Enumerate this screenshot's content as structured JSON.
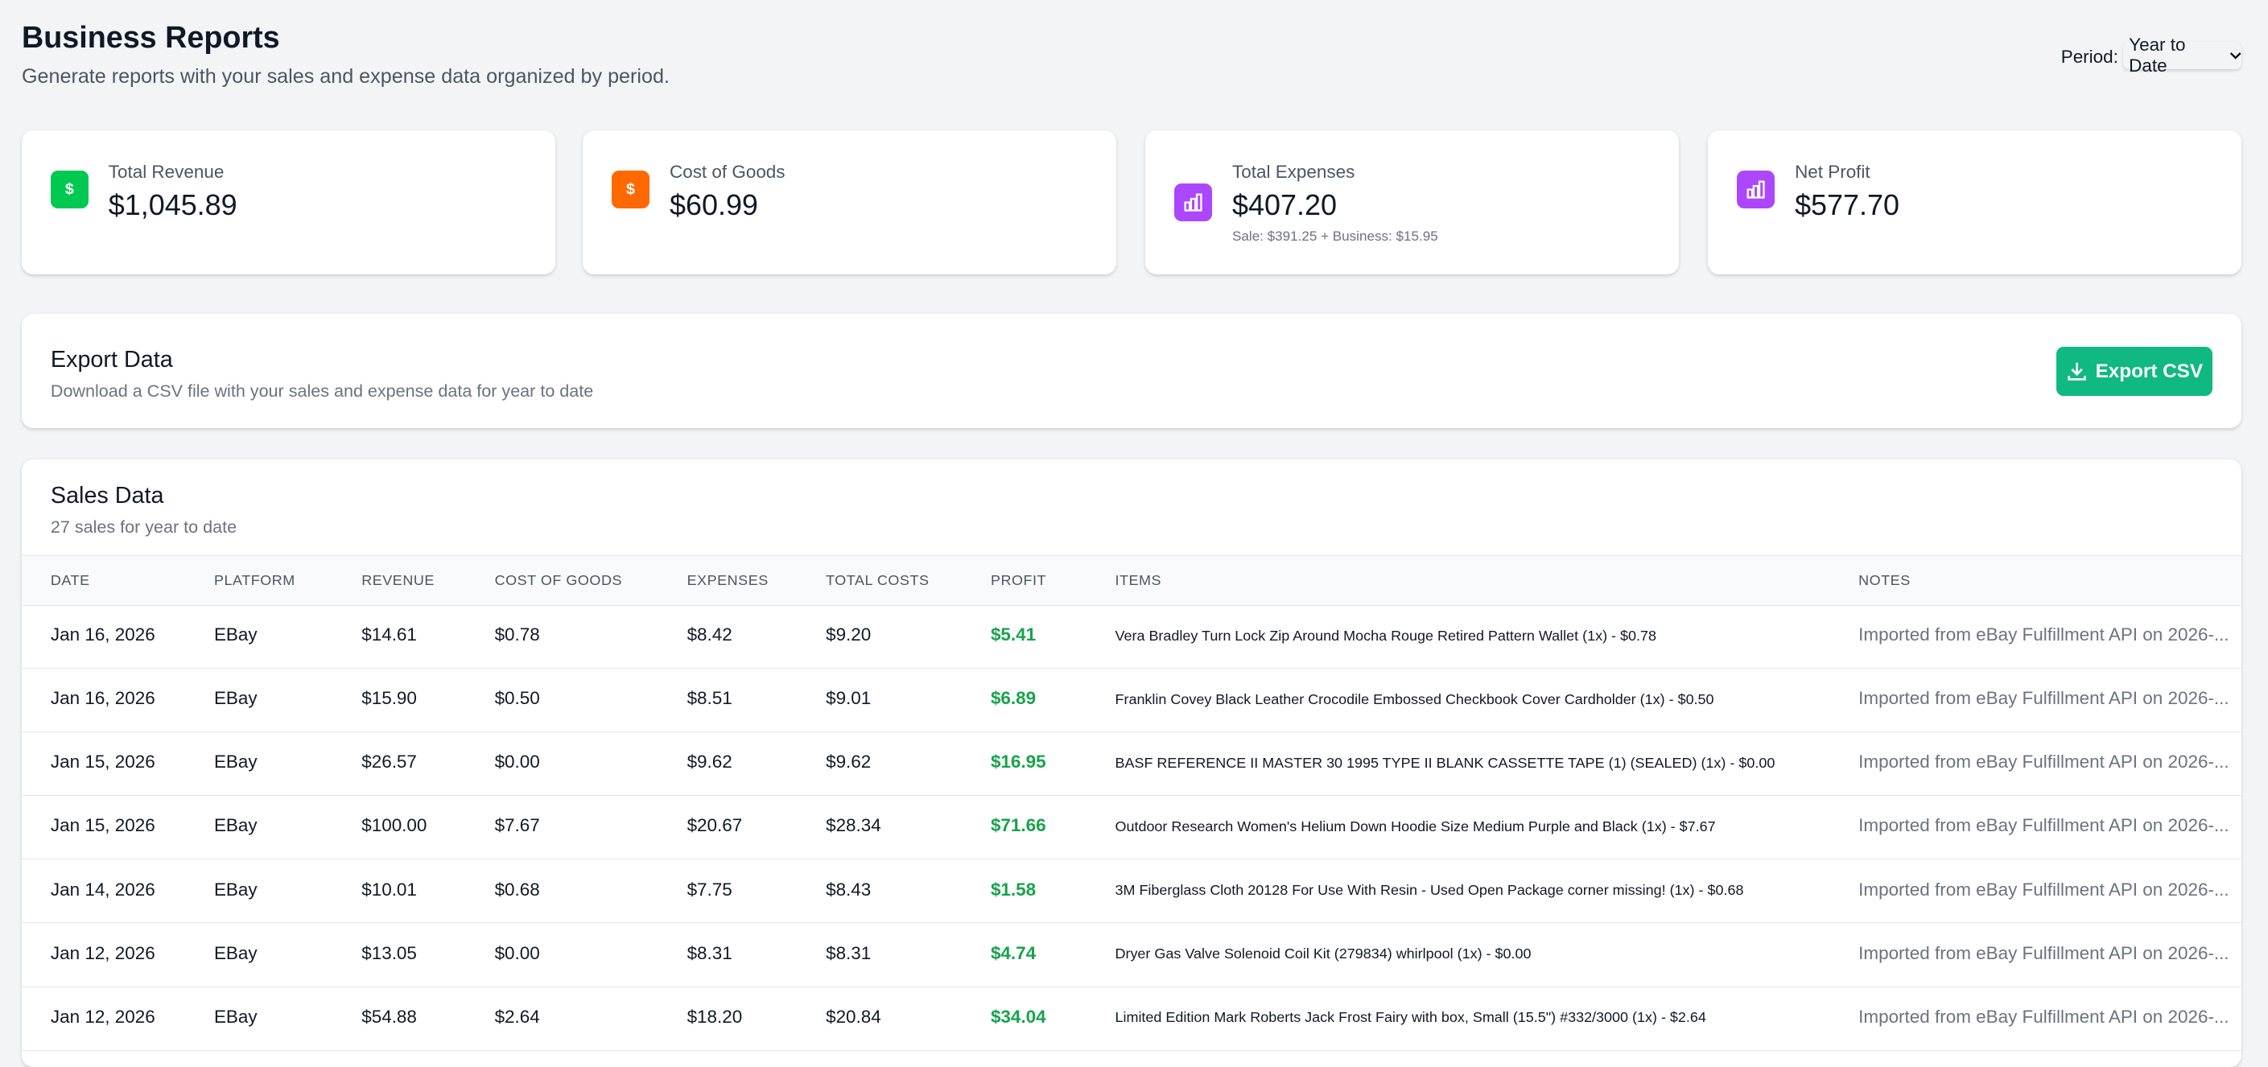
{
  "header": {
    "title": "Business Reports",
    "subtitle": "Generate reports with your sales and expense data organized by period.",
    "period_label": "Period:",
    "period_value": "Year to Date"
  },
  "stats": [
    {
      "label": "Total Revenue",
      "value": "$1,045.89",
      "icon": "dollar-icon",
      "color": "#00c951"
    },
    {
      "label": "Cost of Goods",
      "value": "$60.99",
      "icon": "dollar-icon",
      "color": "#ff6900"
    },
    {
      "label": "Total Expenses",
      "value": "$407.20",
      "note": "Sale: $391.25 + Business: $15.95",
      "icon": "bar-chart-icon",
      "color": "#ad46ff"
    },
    {
      "label": "Net Profit",
      "value": "$577.70",
      "icon": "bar-chart-icon",
      "color": "#ad46ff"
    }
  ],
  "export": {
    "title": "Export Data",
    "subtitle": "Download a CSV file with your sales and expense data for year to date",
    "button": "Export CSV"
  },
  "sales": {
    "title": "Sales Data",
    "subtitle": "27 sales for year to date",
    "columns": [
      "DATE",
      "PLATFORM",
      "REVENUE",
      "COST OF GOODS",
      "EXPENSES",
      "TOTAL COSTS",
      "PROFIT",
      "ITEMS",
      "NOTES"
    ],
    "rows": [
      [
        "Jan 16, 2026",
        "EBay",
        "$14.61",
        "$0.78",
        "$8.42",
        "$9.20",
        "$5.41",
        "Vera Bradley Turn Lock Zip Around Mocha Rouge Retired Pattern Wallet (1x) - $0.78",
        "Imported from eBay Fulfillment API on 2026-..."
      ],
      [
        "Jan 16, 2026",
        "EBay",
        "$15.90",
        "$0.50",
        "$8.51",
        "$9.01",
        "$6.89",
        "Franklin Covey Black Leather Crocodile Embossed Checkbook Cover Cardholder (1x) - $0.50",
        "Imported from eBay Fulfillment API on 2026-..."
      ],
      [
        "Jan 15, 2026",
        "EBay",
        "$26.57",
        "$0.00",
        "$9.62",
        "$9.62",
        "$16.95",
        "BASF REFERENCE II MASTER 30 1995 TYPE II BLANK CASSETTE TAPE (1) (SEALED) (1x) - $0.00",
        "Imported from eBay Fulfillment API on 2026-..."
      ],
      [
        "Jan 15, 2026",
        "EBay",
        "$100.00",
        "$7.67",
        "$20.67",
        "$28.34",
        "$71.66",
        "Outdoor Research Women's Helium Down Hoodie Size Medium Purple and Black (1x) - $7.67",
        "Imported from eBay Fulfillment API on 2026-..."
      ],
      [
        "Jan 14, 2026",
        "EBay",
        "$10.01",
        "$0.68",
        "$7.75",
        "$8.43",
        "$1.58",
        "3M Fiberglass Cloth 20128 For Use With Resin - Used Open Package corner missing! (1x) - $0.68",
        "Imported from eBay Fulfillment API on 2026-..."
      ],
      [
        "Jan 12, 2026",
        "EBay",
        "$13.05",
        "$0.00",
        "$8.31",
        "$8.31",
        "$4.74",
        "Dryer Gas Valve Solenoid Coil Kit (279834) whirlpool (1x) - $0.00",
        "Imported from eBay Fulfillment API on 2026-..."
      ],
      [
        "Jan 12, 2026",
        "EBay",
        "$54.88",
        "$2.64",
        "$18.20",
        "$20.84",
        "$34.04",
        "Limited Edition Mark Roberts Jack Frost Fairy with box, Small (15.5\") #332/3000 (1x) - $2.64",
        "Imported from eBay Fulfillment API on 2026-..."
      ]
    ]
  }
}
